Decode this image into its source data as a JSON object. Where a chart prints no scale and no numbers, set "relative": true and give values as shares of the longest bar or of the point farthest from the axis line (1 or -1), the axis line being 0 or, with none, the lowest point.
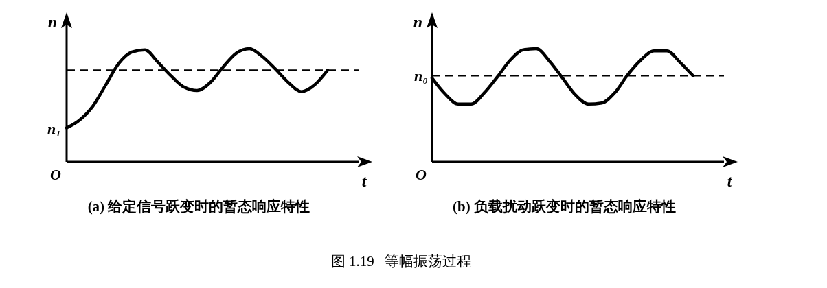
{
  "chart_data": [
    {
      "type": "line",
      "title": "(a) 给定信号跃变时的暂态响应特性",
      "xlabel": "t",
      "ylabel": "n",
      "relative": true,
      "categories": [
        null,
        null,
        null,
        null,
        null,
        null,
        null,
        null,
        null,
        null,
        null,
        null,
        null,
        null,
        null,
        null,
        null,
        null,
        null,
        null,
        null
      ],
      "series": [
        {
          "color": "#000000",
          "values": [
            0.3,
            0.37,
            0.49,
            0.68,
            0.87,
            0.97,
            0.99,
            0.88,
            0.76,
            0.66,
            0.63,
            0.7,
            0.84,
            0.96,
            1.0,
            0.93,
            0.82,
            0.7,
            0.62,
            0.68,
            0.81
          ]
        }
      ],
      "ref_lines": [
        {
          "axis": "y",
          "value": 0.81,
          "line_style": "dashed"
        }
      ],
      "annotations": [
        "O",
        "n₁",
        "图 1.19   等幅振荡过程"
      ],
      "grid": false,
      "marker": "none",
      "line_style": "solid"
    },
    {
      "type": "line",
      "title": "(b) 负载扰动跃变时的暂态响应特性",
      "xlabel": "t",
      "ylabel": "n",
      "relative": true,
      "categories": [
        null,
        null,
        null,
        null,
        null,
        null,
        null,
        null,
        null,
        null,
        null,
        null,
        null,
        null,
        null,
        null,
        null,
        null,
        null,
        null,
        null
      ],
      "series": [
        {
          "color": "#000000",
          "values": [
            0.74,
            0.6,
            0.51,
            0.51,
            0.61,
            0.75,
            0.9,
            0.99,
            1.0,
            0.89,
            0.74,
            0.59,
            0.51,
            0.52,
            0.61,
            0.77,
            0.9,
            0.98,
            0.98,
            0.88,
            0.76
          ]
        }
      ],
      "ref_lines": [
        {
          "axis": "y",
          "value": 0.76,
          "label": "n₀",
          "line_style": "dashed"
        }
      ],
      "annotations": [
        "O"
      ],
      "grid": false,
      "marker": "none",
      "line_style": "solid"
    }
  ]
}
